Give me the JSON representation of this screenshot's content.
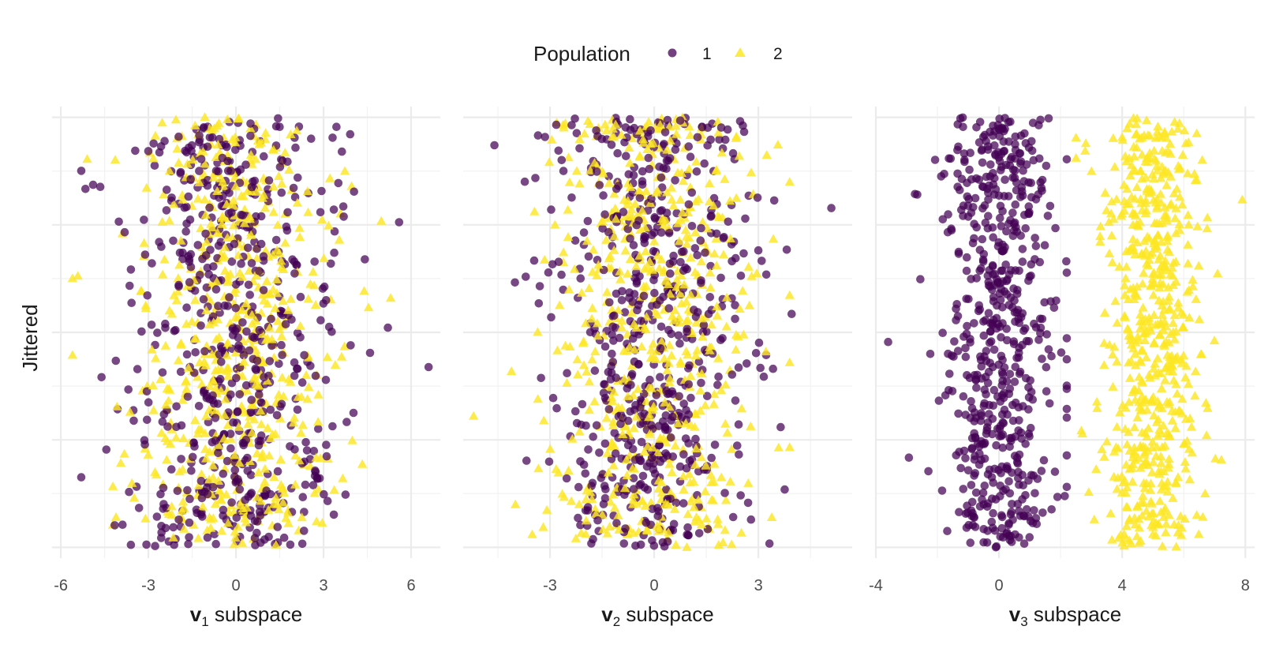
{
  "legend": {
    "title": "Population",
    "items": [
      {
        "label": "1",
        "shape": "circle",
        "color": "#440154"
      },
      {
        "label": "2",
        "shape": "triangle",
        "color": "#FDE725"
      }
    ]
  },
  "y_axis": {
    "title": "Jittered"
  },
  "chart_data": [
    {
      "type": "scatter",
      "xlabel": {
        "bold": "v",
        "sub": "1",
        "rest": " subspace"
      },
      "xlim": [
        -6.3,
        7.0
      ],
      "xticks": [
        -6,
        -3,
        0,
        3,
        6
      ],
      "tick_labels": [
        "-6",
        "-3",
        "0",
        "3",
        "6"
      ],
      "ylim": [
        -0.1,
        4.1
      ],
      "y_grid": [
        0,
        0.5,
        1,
        1.5,
        2,
        2.5,
        3,
        3.5,
        4
      ],
      "series": [
        {
          "name": "1",
          "mean": 0.0,
          "sd": 1.8,
          "n": 600,
          "min_x": -5.3,
          "max_x": 6.6
        },
        {
          "name": "2",
          "mean": 0.0,
          "sd": 1.7,
          "n": 600,
          "min_x": -5.6,
          "max_x": 5.3
        }
      ]
    },
    {
      "type": "scatter",
      "xlabel": {
        "bold": "v",
        "sub": "2",
        "rest": " subspace"
      },
      "xlim": [
        -5.5,
        5.7
      ],
      "xticks": [
        -3,
        0,
        3
      ],
      "tick_labels": [
        "-3",
        "0",
        "3"
      ],
      "ylim": [
        -0.1,
        4.1
      ],
      "y_grid": [
        0,
        0.5,
        1,
        1.5,
        2,
        2.5,
        3,
        3.5,
        4
      ],
      "series": [
        {
          "name": "1",
          "mean": 0.0,
          "sd": 1.5,
          "n": 600,
          "min_x": -4.6,
          "max_x": 5.1
        },
        {
          "name": "2",
          "mean": 0.0,
          "sd": 1.4,
          "n": 600,
          "min_x": -5.2,
          "max_x": 3.9
        }
      ]
    },
    {
      "type": "scatter",
      "xlabel": {
        "bold": "v",
        "sub": "3",
        "rest": " subspace"
      },
      "xlim": [
        -4.0,
        8.3
      ],
      "xticks": [
        -4,
        0,
        4,
        8
      ],
      "tick_labels": [
        "-4",
        "0",
        "4",
        "8"
      ],
      "ylim": [
        -0.1,
        4.1
      ],
      "y_grid": [
        0,
        0.5,
        1,
        1.5,
        2,
        2.5,
        3,
        3.5,
        4
      ],
      "series": [
        {
          "name": "1",
          "mean": 0.0,
          "sd": 0.9,
          "n": 600,
          "min_x": -3.6,
          "max_x": 2.2
        },
        {
          "name": "2",
          "mean": 4.9,
          "sd": 0.8,
          "n": 600,
          "min_x": 2.5,
          "max_x": 7.9
        }
      ]
    }
  ]
}
